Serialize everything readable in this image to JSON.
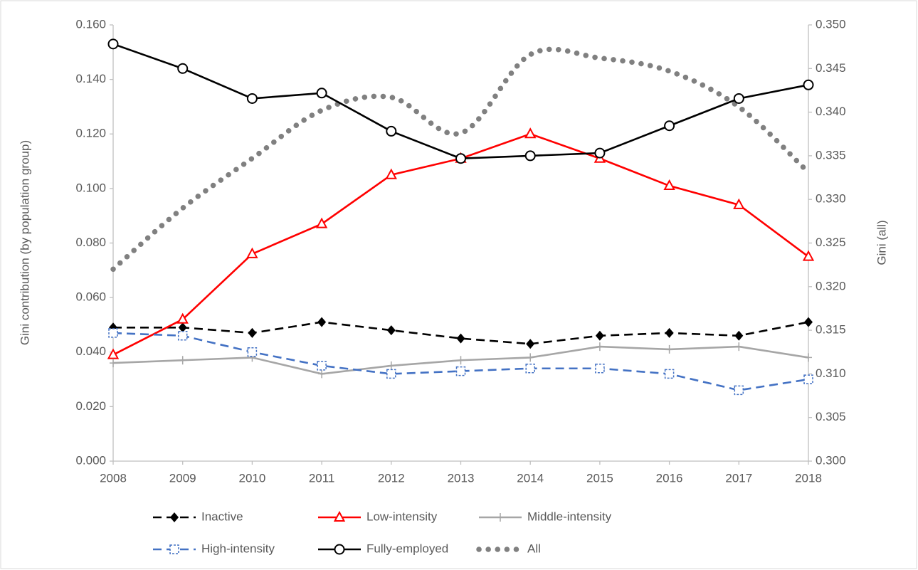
{
  "chart_data": {
    "type": "line",
    "y_label": "Gini contribution (by population group)",
    "y2_label": "Gini (all)",
    "x": [
      2008,
      2009,
      2010,
      2011,
      2012,
      2013,
      2014,
      2015,
      2016,
      2017,
      2018
    ],
    "xlim": [
      2008,
      2018
    ],
    "xticks": [
      2008,
      2009,
      2010,
      2011,
      2012,
      2013,
      2014,
      2015,
      2016,
      2017,
      2018
    ],
    "ylim": [
      0,
      0.16
    ],
    "yticks": [
      {
        "value": 0,
        "label": "0.000"
      },
      {
        "value": 0.02,
        "label": "0.020"
      },
      {
        "value": 0.04,
        "label": "0.040"
      },
      {
        "value": 0.06,
        "label": "0.060"
      },
      {
        "value": 0.08,
        "label": "0.080"
      },
      {
        "value": 0.1,
        "label": "0.100"
      },
      {
        "value": 0.12,
        "label": "0.120"
      },
      {
        "value": 0.14,
        "label": "0.140"
      },
      {
        "value": 0.16,
        "label": "0.160"
      }
    ],
    "y2lim": [
      0.3,
      0.35
    ],
    "y2ticks": [
      {
        "value": 0.3,
        "label": "0.300"
      },
      {
        "value": 0.305,
        "label": "0.305"
      },
      {
        "value": 0.31,
        "label": "0.310"
      },
      {
        "value": 0.315,
        "label": "0.315"
      },
      {
        "value": 0.32,
        "label": "0.320"
      },
      {
        "value": 0.325,
        "label": "0.325"
      },
      {
        "value": 0.33,
        "label": "0.330"
      },
      {
        "value": 0.335,
        "label": "0.335"
      },
      {
        "value": 0.34,
        "label": "0.340"
      },
      {
        "value": 0.345,
        "label": "0.345"
      },
      {
        "value": 0.35,
        "label": "0.350"
      }
    ],
    "grid": false,
    "legend": "bottom",
    "series": [
      {
        "name": "Inactive",
        "color": "#000000",
        "dash": "dashed",
        "marker": "diamond",
        "values": [
          0.049,
          0.049,
          0.047,
          0.051,
          0.048,
          0.045,
          0.043,
          0.046,
          0.047,
          0.046,
          0.051
        ]
      },
      {
        "name": "Low-intensity",
        "color": "#ff0000",
        "dash": "solid",
        "marker": "triangle",
        "values": [
          0.039,
          0.052,
          0.076,
          0.087,
          0.105,
          0.111,
          0.12,
          0.111,
          0.101,
          0.094,
          0.075
        ]
      },
      {
        "name": "Middle-intensity",
        "color": "#a6a6a6",
        "dash": "solid",
        "marker": "plus",
        "values": [
          0.036,
          0.037,
          0.038,
          0.032,
          0.035,
          0.037,
          0.038,
          0.042,
          0.041,
          0.042,
          0.038
        ]
      },
      {
        "name": "High-intensity",
        "color": "#4472c4",
        "dash": "dashed",
        "marker": "square",
        "values": [
          0.047,
          0.046,
          0.04,
          0.035,
          0.032,
          0.033,
          0.034,
          0.034,
          0.032,
          0.026,
          0.03
        ]
      },
      {
        "name": "Fully-employed",
        "color": "#000000",
        "dash": "solid",
        "marker": "circle",
        "values": [
          0.153,
          0.144,
          0.133,
          0.135,
          0.121,
          0.111,
          0.112,
          0.113,
          0.123,
          0.133,
          0.138
        ]
      },
      {
        "name": "All",
        "color": "#808080",
        "dash": "dotted",
        "marker": "none",
        "axis": "y2",
        "values": [
          0.322,
          0.329,
          0.3347,
          0.3402,
          0.3417,
          0.3376,
          0.3466,
          0.3462,
          0.3447,
          0.3406,
          0.3331
        ]
      }
    ]
  }
}
